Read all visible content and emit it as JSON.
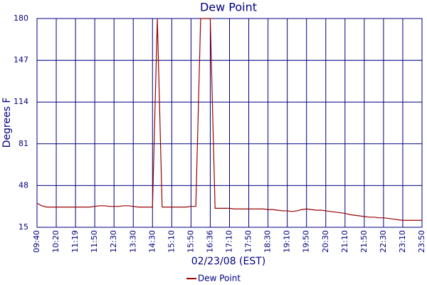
{
  "chart_data": {
    "type": "line",
    "title": "Dew Point",
    "x_label": "02/23/08 (EST)",
    "y_label": "Degrees F",
    "categories": [
      "09:40",
      null,
      null,
      null,
      "10:20",
      null,
      null,
      null,
      "11:19",
      null,
      null,
      null,
      "11:50",
      null,
      null,
      null,
      "12:30",
      null,
      null,
      null,
      "13:30",
      null,
      null,
      null,
      "14:30",
      null,
      null,
      null,
      "15:10",
      null,
      null,
      null,
      "15:50",
      null,
      null,
      null,
      "16:36",
      null,
      null,
      null,
      "17:10",
      null,
      null,
      null,
      "17:50",
      null,
      null,
      null,
      "18:30",
      null,
      null,
      null,
      "19:10",
      null,
      null,
      null,
      "19:50",
      null,
      null,
      null,
      "20:30",
      null,
      null,
      null,
      "21:10",
      null,
      null,
      null,
      "21:50",
      null,
      null,
      null,
      "22:30",
      null,
      null,
      null,
      "23:10",
      null,
      null,
      null,
      "23:50"
    ],
    "series": [
      {
        "name": "Dew Point",
        "color": "#990000",
        "values": [
          34,
          32,
          31,
          31,
          31,
          31,
          31,
          31,
          31,
          31,
          31,
          31,
          31.5,
          32,
          32,
          31.5,
          31.5,
          31.5,
          32,
          32,
          31.5,
          31,
          31,
          31,
          31,
          180,
          31,
          31,
          31,
          31,
          31,
          31,
          31.5,
          31.5,
          180,
          180,
          180,
          30,
          30,
          30,
          30,
          29.5,
          29.5,
          29.5,
          29.5,
          29.5,
          29.5,
          29.5,
          29,
          29,
          28.5,
          28,
          28,
          27.5,
          28,
          29,
          29.5,
          29,
          28.5,
          28.5,
          28,
          27.5,
          27,
          26.5,
          26,
          25,
          24.5,
          24,
          23.5,
          23,
          23,
          22.5,
          22.5,
          22,
          21.5,
          21,
          20.5,
          20.5,
          20.5,
          20.5,
          20.5
        ]
      }
    ],
    "ylim": [
      15,
      180
    ],
    "yticks": [
      15,
      48,
      81,
      114,
      147,
      180
    ],
    "grid": true,
    "grid_color": "#000080"
  }
}
